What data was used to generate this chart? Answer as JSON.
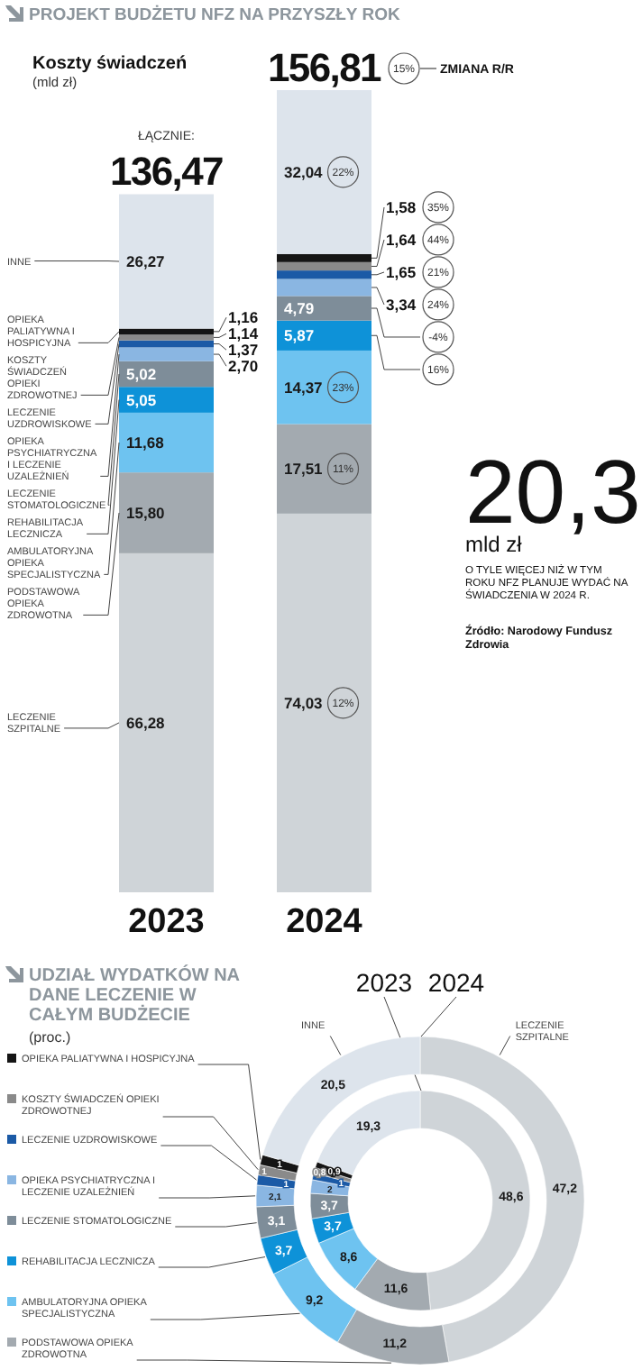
{
  "chart_data": [
    {
      "type": "bar",
      "stacked": true,
      "title": "PROJEKT BUDŻETU NFZ NA PRZYSZŁY ROK",
      "subtitle": "Koszty świadczeń",
      "ylabel": "(mld zł)",
      "categories": [
        "2023",
        "2024"
      ],
      "series": [
        {
          "name": "LECZENIE SZPITALNE",
          "color": "#cfd4d8",
          "values": [
            66.28,
            74.03
          ],
          "value_labels": [
            "66,28",
            "74,03"
          ]
        },
        {
          "name": "PODSTAWOWA OPIEKA ZDROWOTNA",
          "color": "#a3aab0",
          "values": [
            15.8,
            17.51
          ],
          "value_labels": [
            "15,80",
            "17,51"
          ]
        },
        {
          "name": "AMBULATORYJNA OPIEKA SPECJALISTYCZNA",
          "color": "#6ec3f0",
          "values": [
            11.68,
            14.37
          ],
          "value_labels": [
            "11,68",
            "14,37"
          ]
        },
        {
          "name": "REHABILITACJA LECZNICZA",
          "color": "#0e92d8",
          "values": [
            5.05,
            5.87
          ],
          "value_labels": [
            "5,05",
            "5,87"
          ]
        },
        {
          "name": "LECZENIE STOMATOLOGICZNE",
          "color": "#7e8d99",
          "values": [
            5.02,
            4.79
          ],
          "value_labels": [
            "5,02",
            "4,79"
          ]
        },
        {
          "name": "OPIEKA PSYCHIATRYCZNA I LECZENIE UZALEŻNIEŃ",
          "color": "#8ab6e2",
          "values": [
            2.7,
            3.34
          ],
          "value_labels": [
            "2,70",
            "3,34"
          ]
        },
        {
          "name": "LECZENIE UZDROWISKOWE",
          "color": "#1b5aa6",
          "values": [
            1.37,
            1.65
          ],
          "value_labels": [
            "1,37",
            "1,65"
          ]
        },
        {
          "name": "KOSZTY ŚWIADCZEŃ OPIEKI ZDROWOTNEJ",
          "color": "#8a8a8a",
          "values": [
            1.14,
            1.64
          ],
          "value_labels": [
            "1,14",
            "1,64"
          ]
        },
        {
          "name": "OPIEKA PALIATYWNA I HOSPICYJNA",
          "color": "#151515",
          "values": [
            1.16,
            1.58
          ],
          "value_labels": [
            "1,16",
            "1,58"
          ]
        },
        {
          "name": "INNE",
          "color": "#dde4ec",
          "values": [
            26.27,
            32.04
          ],
          "value_labels": [
            "26,27",
            "32,04"
          ]
        }
      ],
      "totals": [
        "136,47",
        "156,81"
      ],
      "annotations": [
        "ŁĄCZNIE:",
        "ZMIANA R/R",
        "20,3",
        "mld zł",
        "O TYLE WIĘCEJ NIŻ W TYM ROKU NFZ PLANUJE WYDAĆ NA ŚWIADCZENIA W 2024 R.",
        "Źródło: Narodowy Fundusz Zdrowia",
        "15%",
        "12%",
        "11%",
        "23%",
        "16%",
        "-4%",
        "24%",
        "21%",
        "44%",
        "35%",
        "22%"
      ]
    },
    {
      "type": "donut",
      "title": "UDZIAŁ WYDATKÓW NA DANE LECZENIE W CAŁYM BUDŻECIE",
      "subtitle": "(proc.)",
      "data_labels": true,
      "legend": "left",
      "categories": [
        "LECZENIE SZPITALNE",
        "PODSTAWOWA OPIEKA ZDROWOTNA",
        "AMBULATORYJNA OPIEKA SPECJALISTYCZNA",
        "REHABILITACJA LECZNICZA",
        "LECZENIE STOMATOLOGICZNE",
        "OPIEKA PSYCHIATRYCZNA I LECZENIE UZALEŻNIEŃ",
        "LECZENIE UZDROWISKOWE",
        "KOSZTY ŚWIADCZEŃ OPIEKI ZDROWOTNEJ",
        "OPIEKA PALIATYWNA I HOSPICYJNA",
        "INNE"
      ],
      "colors": [
        "#cfd4d8",
        "#a3aab0",
        "#6ec3f0",
        "#0e92d8",
        "#7e8d99",
        "#8ab6e2",
        "#1b5aa6",
        "#8a8a8a",
        "#151515",
        "#dde4ec"
      ],
      "series": [
        {
          "name": "2023",
          "values": [
            48.6,
            11.6,
            8.6,
            3.7,
            3.7,
            2,
            1,
            0.8,
            0.9,
            19.3
          ],
          "value_labels": [
            "48,6",
            "11,6",
            "8,6",
            "3,7",
            "3,7",
            "2",
            "1",
            "0,8",
            "0,9",
            "19,3"
          ]
        },
        {
          "name": "2024",
          "values": [
            47.2,
            11.2,
            9.2,
            3.7,
            3.1,
            2.1,
            1,
            1,
            1,
            20.5
          ],
          "value_labels": [
            "47,2",
            "11,2",
            "9,2",
            "3,7",
            "3,1",
            "2,1",
            "1",
            "1",
            "1",
            "20,5"
          ]
        }
      ]
    }
  ]
}
